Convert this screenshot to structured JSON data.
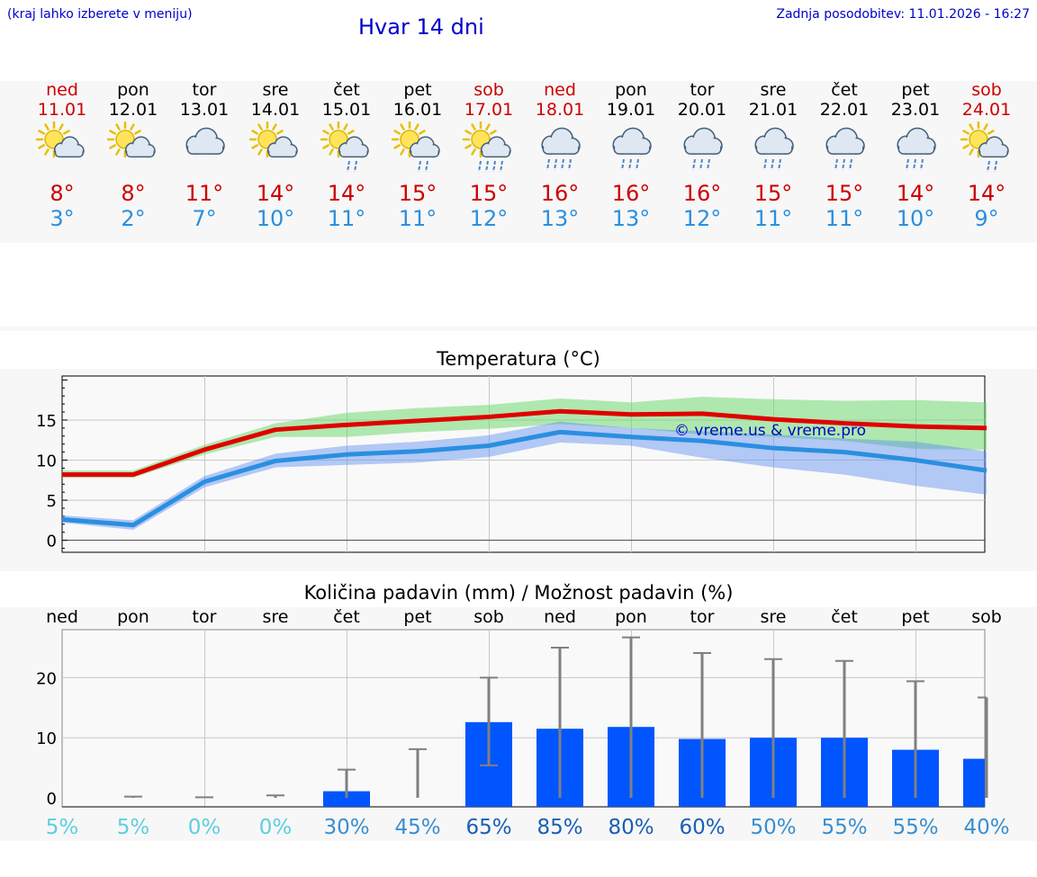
{
  "header": {
    "hint": "(kraj lahko izberete v meniju)",
    "title": "Hvar 14 dni",
    "updated": "Zadnja posodobitev: 11.01.2026 - 16:27"
  },
  "colors": {
    "max": "#e00000",
    "min": "#2a8fe0",
    "bar": "#0055ff",
    "err": "#808080"
  },
  "days": [
    {
      "name": "ned",
      "date": "11.01",
      "weekend": true,
      "icon": "sun-cloud-icon",
      "max": "8°",
      "min": "3°"
    },
    {
      "name": "pon",
      "date": "12.01",
      "weekend": false,
      "icon": "sun-cloud-icon",
      "max": "8°",
      "min": "2°"
    },
    {
      "name": "tor",
      "date": "13.01",
      "weekend": false,
      "icon": "cloud-icon",
      "max": "11°",
      "min": "7°"
    },
    {
      "name": "sre",
      "date": "14.01",
      "weekend": false,
      "icon": "sun-cloud-icon",
      "max": "14°",
      "min": "10°"
    },
    {
      "name": "čet",
      "date": "15.01",
      "weekend": false,
      "icon": "sun-cloud-rain-icon",
      "max": "14°",
      "min": "11°"
    },
    {
      "name": "pet",
      "date": "16.01",
      "weekend": false,
      "icon": "sun-cloud-rain-icon",
      "max": "15°",
      "min": "11°"
    },
    {
      "name": "sob",
      "date": "17.01",
      "weekend": true,
      "icon": "sun-cloud-heavy-rain-icon",
      "max": "15°",
      "min": "12°"
    },
    {
      "name": "ned",
      "date": "18.01",
      "weekend": true,
      "icon": "cloud-heavy-rain-icon",
      "max": "16°",
      "min": "13°"
    },
    {
      "name": "pon",
      "date": "19.01",
      "weekend": false,
      "icon": "cloud-rain-icon",
      "max": "16°",
      "min": "13°"
    },
    {
      "name": "tor",
      "date": "20.01",
      "weekend": false,
      "icon": "cloud-rain-icon",
      "max": "16°",
      "min": "12°"
    },
    {
      "name": "sre",
      "date": "21.01",
      "weekend": false,
      "icon": "cloud-rain-icon",
      "max": "15°",
      "min": "11°"
    },
    {
      "name": "čet",
      "date": "22.01",
      "weekend": false,
      "icon": "cloud-rain-icon",
      "max": "15°",
      "min": "11°"
    },
    {
      "name": "pet",
      "date": "23.01",
      "weekend": false,
      "icon": "cloud-rain-icon",
      "max": "14°",
      "min": "10°"
    },
    {
      "name": "sob",
      "date": "24.01",
      "weekend": true,
      "icon": "sun-cloud-rain-icon",
      "max": "14°",
      "min": "9°"
    }
  ],
  "chart_data": [
    {
      "type": "line",
      "title": "Temperatura (°C)",
      "watermark": "© vreme.us & vreme.pro",
      "ylim": [
        -1.5,
        20.5
      ],
      "yticks": [
        0,
        5,
        10,
        15
      ],
      "x": [
        0,
        1,
        2,
        3,
        4,
        5,
        6,
        7,
        8,
        9,
        10,
        11,
        12,
        13
      ],
      "series": [
        {
          "name": "max",
          "values": [
            8.2,
            8.2,
            11.3,
            13.8,
            14.4,
            14.9,
            15.4,
            16.1,
            15.7,
            15.8,
            15.1,
            14.6,
            14.2,
            14.0
          ]
        },
        {
          "name": "min",
          "values": [
            2.6,
            1.9,
            7.3,
            9.9,
            10.7,
            11.1,
            11.8,
            13.5,
            12.9,
            12.4,
            11.5,
            11.0,
            10.0,
            8.7
          ]
        }
      ],
      "bands": [
        {
          "name": "max-range",
          "low": [
            7.8,
            7.8,
            10.7,
            12.9,
            12.9,
            13.5,
            13.9,
            14.5,
            14.0,
            13.2,
            12.9,
            12.4,
            11.4,
            11.3
          ],
          "high": [
            8.7,
            8.7,
            11.9,
            14.6,
            15.9,
            16.5,
            16.9,
            17.7,
            17.2,
            17.9,
            17.6,
            17.4,
            17.5,
            17.2
          ]
        },
        {
          "name": "min-range",
          "low": [
            2.2,
            1.3,
            6.6,
            9.1,
            9.4,
            9.7,
            10.4,
            12.2,
            11.8,
            10.3,
            9.1,
            8.2,
            6.8,
            5.7
          ],
          "high": [
            3.1,
            2.5,
            8.0,
            10.8,
            11.8,
            12.3,
            13.1,
            14.8,
            14.0,
            13.6,
            13.2,
            12.7,
            12.3,
            11.1
          ]
        }
      ]
    },
    {
      "type": "bar",
      "title": "Količina padavin (mm) / Možnost padavin (%)",
      "ylim": [
        -1.5,
        28
      ],
      "yticks": [
        0,
        10,
        20
      ],
      "categories": [
        "ned",
        "pon",
        "tor",
        "sre",
        "čet",
        "pet",
        "sob",
        "ned",
        "pon",
        "tor",
        "sre",
        "čet",
        "pet",
        "sob"
      ],
      "values": [
        0,
        0,
        0,
        0,
        1.1,
        0,
        12.6,
        11.5,
        11.8,
        9.8,
        10.0,
        10.0,
        8.0,
        6.5
      ],
      "error_low": [
        0,
        0,
        0,
        0,
        0,
        0,
        5.4,
        0,
        0,
        0,
        0,
        0,
        0,
        0
      ],
      "error_high": [
        0,
        0.2,
        0.1,
        0.4,
        4.7,
        8.1,
        20.0,
        25.0,
        26.7,
        24.1,
        23.1,
        22.8,
        19.4,
        16.7
      ],
      "probability": [
        "5%",
        "5%",
        "0%",
        "0%",
        "30%",
        "45%",
        "65%",
        "85%",
        "80%",
        "60%",
        "50%",
        "55%",
        "55%",
        "40%"
      ]
    }
  ]
}
